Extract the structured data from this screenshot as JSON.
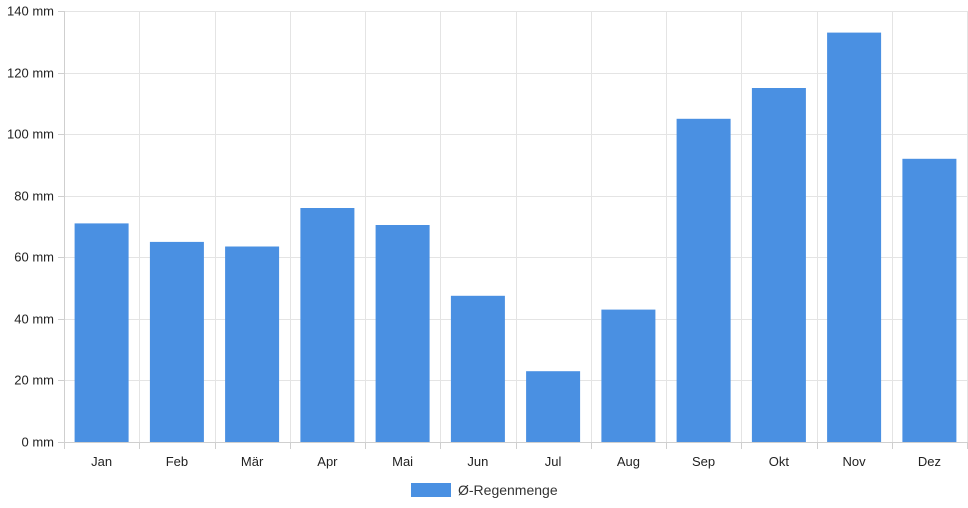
{
  "chart_data": {
    "type": "bar",
    "categories": [
      "Jan",
      "Feb",
      "Mär",
      "Apr",
      "Mai",
      "Jun",
      "Jul",
      "Aug",
      "Sep",
      "Okt",
      "Nov",
      "Dez"
    ],
    "series": [
      {
        "name": "Ø-Regenmenge",
        "values": [
          71,
          65,
          63.5,
          76,
          70.5,
          47.5,
          23,
          43,
          105,
          115,
          133,
          92
        ],
        "color": "#4a90e2"
      }
    ],
    "ylim": [
      0,
      140
    ],
    "yticks": [
      0,
      20,
      40,
      60,
      80,
      100,
      120,
      140
    ],
    "y_unit": "mm",
    "grid": true,
    "legend_position": "bottom-center"
  }
}
